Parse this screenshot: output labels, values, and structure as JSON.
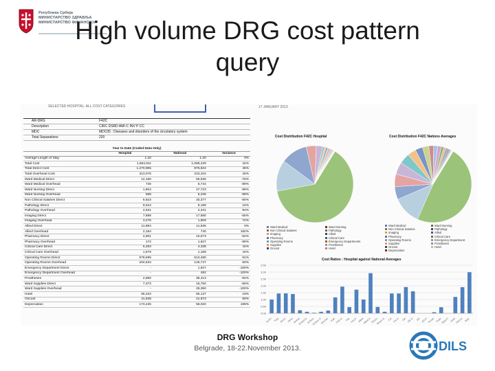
{
  "logo": {
    "lines": [
      "Република Србија",
      "МИНИСТАРСТВО ЗДРАВЉА",
      "МИНИСТАРСТВО ФИНАНСИЈА"
    ]
  },
  "title": {
    "line1": "High volume DRG cost pattern",
    "line2": "query"
  },
  "report": {
    "header_left": "SELECTED HOSPITAL: ALL COST CATEGORIES",
    "header_date": "17 JANUARY 2013"
  },
  "drg_info": [
    {
      "key": "AR-DRG",
      "value": "F42C"
    },
    {
      "key": "Description",
      "value": "CIRC DSRD AMI-C INV P CC"
    },
    {
      "key": "MDC",
      "value": "MDC05 : Diseases and disorders of the circulatory system"
    },
    {
      "key": "Total Separations",
      "value": "220"
    }
  ],
  "cost_table": {
    "period": "Year to Date (Coded Data Only)",
    "columns": [
      "",
      "Hospital",
      "National",
      "Variance"
    ],
    "rows": [
      [
        "Average Length of Stay",
        "1.20",
        "1.20",
        "0%"
      ],
      [
        "Total Cost",
        "1,564,911",
        "1,088,239",
        "44%"
      ],
      [
        "Total Direct Cost",
        "1,270,955",
        "876,924",
        "45%"
      ],
      [
        "Total Overhead Cost",
        "313,076",
        "223,315",
        "40%"
      ],
      [
        "Ward Medical Direct",
        "12,166",
        "56,536",
        "-78%"
      ],
      [
        "Ward Medical Overhead",
        "746",
        "6,744",
        "-89%"
      ],
      [
        "Ward Nursing Direct",
        "1,804",
        "47,723",
        "-96%"
      ],
      [
        "Ward Nursing Overhead",
        "588",
        "5,345",
        "-89%"
      ],
      [
        "Non Clinical Salaries Direct",
        "6,623",
        "33,377",
        "-80%"
      ],
      [
        "Pathology Direct",
        "9,524",
        "8,188",
        "16%"
      ],
      [
        "Pathology Overhead",
        "4,531",
        "2,341",
        "94%"
      ],
      [
        "Imaging Direct",
        "7,898",
        "17,580",
        "-55%"
      ],
      [
        "Imaging Overhead",
        "3,276",
        "1,909",
        "72%"
      ],
      [
        "Allied Direct",
        "11,884",
        "11,836",
        "0%"
      ],
      [
        "Allied Overhead",
        "2,164",
        "740",
        "192%"
      ],
      [
        "Pharmacy Direct",
        "4,901",
        "10,673",
        "-54%"
      ],
      [
        "Pharmacy Overhead",
        "172",
        "1,627",
        "-89%"
      ],
      [
        "Critical Care Direct",
        "6,263",
        "4,336",
        "44%"
      ],
      [
        "Critical Care Overhead",
        "1,679",
        "1,169",
        "44%"
      ],
      [
        "Operating Rooms Direct",
        "978,695",
        "513,480",
        "91%"
      ],
      [
        "Operating Rooms Overhead",
        "202,534",
        "126,747",
        "60%"
      ],
      [
        "Emergency Department Direct",
        "-",
        "1,627",
        "-100%"
      ],
      [
        "Emergency Department Overhead",
        "-",
        "482",
        "-100%"
      ],
      [
        "Prostheses",
        "2,890",
        "38,413",
        "-92%"
      ],
      [
        "Ward Supplies Direct",
        "7,373",
        "16,750",
        "-56%"
      ],
      [
        "Ward Supplies Overhead",
        "-",
        "28,360",
        "-100%"
      ],
      [
        "Hotel",
        "65,344",
        "55,137",
        "19%"
      ],
      [
        "Oncost",
        "41,838",
        "21,973",
        "90%"
      ],
      [
        "Depreciation",
        "173,245",
        "58,020",
        "199%"
      ]
    ]
  },
  "pie_hospital": {
    "title": "Cost Distribution F42C Hospital",
    "values": [
      978695,
      202534,
      173245,
      65344,
      41838,
      12166,
      11884,
      9524,
      7898,
      7373,
      6623,
      6263,
      4901,
      4531,
      3276,
      2890,
      2164,
      1804,
      1679,
      746,
      588,
      172
    ],
    "colors": [
      "#9bc47a",
      "#b8cfe0",
      "#8fa7cf",
      "#e3a4a2",
      "#c9b5d8",
      "#7fc7c8",
      "#f3c28a",
      "#7b93c5",
      "#c9d48e",
      "#d18b8b",
      "#a6c2e8",
      "#d9a3c6",
      "#90b090",
      "#e0c080",
      "#8aa0b8",
      "#c08090",
      "#70a8a8",
      "#b0b8d8",
      "#e8b890",
      "#a8c8a0",
      "#c8a8c8",
      "#98b8c8"
    ]
  },
  "pie_national": {
    "title": "Cost Distribution F42C Nations Averages",
    "values": [
      513480,
      126747,
      58020,
      56536,
      55137,
      47723,
      38413,
      33377,
      28360,
      21973,
      17580,
      16750,
      11836,
      10673,
      8188,
      6744,
      5345,
      4336,
      2341,
      1909,
      1627,
      1627,
      1169,
      740,
      482
    ],
    "colors": [
      "#9bc47a",
      "#b8cfe0",
      "#8fa7cf",
      "#e3a4a2",
      "#c9b5d8",
      "#7fc7c8",
      "#f3c28a",
      "#7b93c5",
      "#c9d48e",
      "#d18b8b",
      "#a6c2e8",
      "#d9a3c6",
      "#90b090",
      "#e0c080",
      "#8aa0b8",
      "#c08090",
      "#70a8a8",
      "#b0b8d8",
      "#e8b890",
      "#a8c8a0",
      "#c8a8c8",
      "#98b8c8",
      "#d8c8a0",
      "#b8a8d8",
      "#a0d0b8"
    ]
  },
  "legend_hospital": [
    {
      "label": "Ward Medical",
      "color": "#4f81bd"
    },
    {
      "label": "Non Clinical Salaries",
      "color": "#c0504d"
    },
    {
      "label": "Imaging",
      "color": "#9bbb59"
    },
    {
      "label": "Pharmacy",
      "color": "#8064a2"
    },
    {
      "label": "Operating Rooms",
      "color": "#4bacc6"
    },
    {
      "label": "Supplies",
      "color": "#f79646"
    },
    {
      "label": "Oncost",
      "color": "#2c4d75"
    },
    {
      "label": "Ward Nursing",
      "color": "#772c2a"
    },
    {
      "label": "Pathology",
      "color": "#5f7530"
    },
    {
      "label": "Allied",
      "color": "#4d3b62"
    },
    {
      "label": "Critical Care",
      "color": "#276a7c"
    },
    {
      "label": "Emergency Departments",
      "color": "#b65708"
    },
    {
      "label": "Prostheses",
      "color": "#729aca"
    },
    {
      "label": "Hotel",
      "color": "#cd7371"
    }
  ],
  "legend_national": [
    {
      "label": "Ward Medical",
      "color": "#4f81bd"
    },
    {
      "label": "Non Clinical Salaries",
      "color": "#c0504d"
    },
    {
      "label": "Imaging",
      "color": "#9bbb59"
    },
    {
      "label": "Pharmacy",
      "color": "#8064a2"
    },
    {
      "label": "Operating Rooms",
      "color": "#4bacc6"
    },
    {
      "label": "Supplies",
      "color": "#f79646"
    },
    {
      "label": "Oncost",
      "color": "#2c4d75"
    },
    {
      "label": "Depreciation",
      "color": "#772c2a"
    },
    {
      "label": "Ward Nursing",
      "color": "#5f7530"
    },
    {
      "label": "Pathology",
      "color": "#4d3b62"
    },
    {
      "label": "Allied",
      "color": "#276a7c"
    },
    {
      "label": "Critical Care",
      "color": "#b65708"
    },
    {
      "label": "Emergency Department",
      "color": "#729aca"
    },
    {
      "label": "Prostheses",
      "color": "#cd7371"
    },
    {
      "label": "Hotel",
      "color": "#afc97a"
    }
  ],
  "chart_data": {
    "type": "bar",
    "title": "Cost Ratios : Hospital against National Averages",
    "categories": [
      "ALOS",
      "Total",
      "Direct",
      "Ovhd",
      "W.Med",
      "W.Med O",
      "W.Nurs",
      "W.Nurs O",
      "NonClin",
      "Path",
      "Path O",
      "Img",
      "Img O",
      "Allied",
      "Allied O",
      "Pharm",
      "Pharm O",
      "Crit",
      "Crit O",
      "OR",
      "OR O",
      "ED",
      "ED O",
      "Prosth",
      "Supp",
      "Supp O",
      "Hotel",
      "Oncost",
      "Depr"
    ],
    "values": [
      1.0,
      1.44,
      1.45,
      1.4,
      0.22,
      0.11,
      0.04,
      0.11,
      0.2,
      1.16,
      1.94,
      0.45,
      1.72,
      1.0,
      2.92,
      0.46,
      0.11,
      1.44,
      1.44,
      1.91,
      1.6,
      0.0,
      0.0,
      0.08,
      0.44,
      0.0,
      1.19,
      1.9,
      2.99
    ],
    "ylim": [
      0,
      3.5
    ],
    "yticks": [
      "0.00",
      "0.50",
      "1.00",
      "1.50",
      "2.00",
      "2.50",
      "3.00",
      "3.50"
    ],
    "color": "#4f81bd",
    "grid": true
  },
  "footer": {
    "title": "DRG Workshop",
    "subtitle": "Belgrade, 18-22.November 2013."
  },
  "dils_logo": {
    "text": "DILS"
  }
}
